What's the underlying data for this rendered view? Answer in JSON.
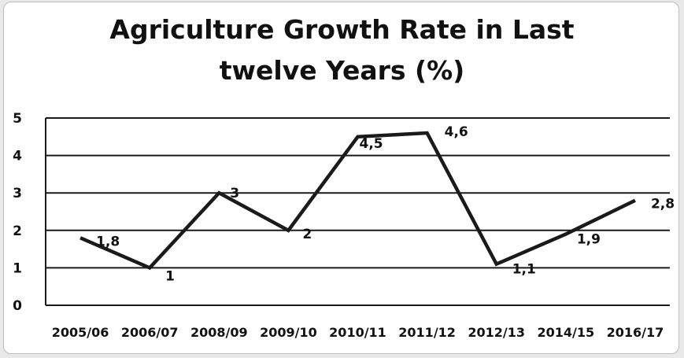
{
  "chart_data": {
    "type": "line",
    "title_lines": [
      "Agriculture Growth Rate in Last",
      "twelve Years (%)"
    ],
    "categories": [
      "2005/06",
      "2006/07",
      "2008/09",
      "2009/10",
      "2010/11",
      "2011/12",
      "2012/13",
      "2014/15",
      "2016/17"
    ],
    "values": [
      1.8,
      1,
      3,
      2,
      4.5,
      4.6,
      1.1,
      1.9,
      2.8
    ],
    "data_labels": [
      "1,8",
      "1",
      "3",
      "2",
      "4,5",
      "4,6",
      "1,1",
      "1,9",
      "2,8"
    ],
    "y_ticks": [
      "0",
      "1",
      "2",
      "3",
      "4",
      "5"
    ],
    "ylim": [
      0,
      5
    ],
    "grid": true,
    "legend": "none",
    "line_color": "#1a1a1a",
    "grid_color": "#1a1a1a"
  }
}
